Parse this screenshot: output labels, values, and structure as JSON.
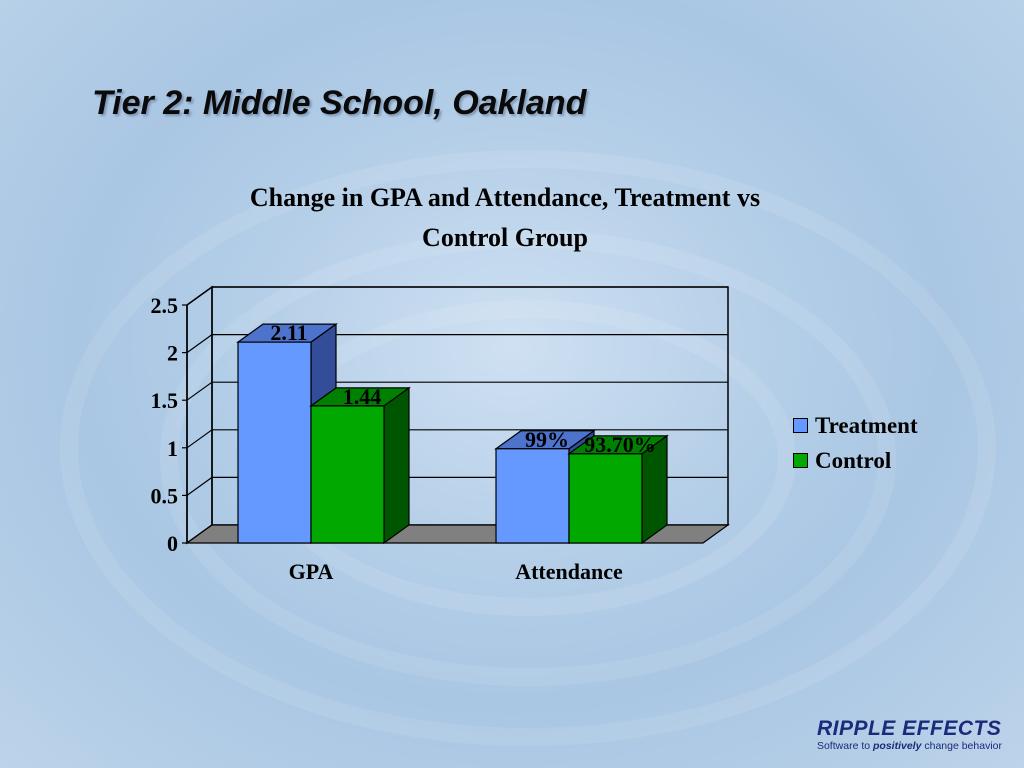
{
  "slide": {
    "title": "Tier 2: Middle School, Oakland"
  },
  "logo": {
    "name": "RIPPLE EFFECTS",
    "tagline_start": "Software to ",
    "tagline_emphasis": "positively",
    "tagline_end": " change behavior"
  },
  "chart_data": {
    "type": "bar",
    "title_line1": "Change in GPA and Attendance, Treatment vs",
    "title_line2": "Control Group",
    "categories": [
      "GPA",
      "Attendance"
    ],
    "series": [
      {
        "name": "Treatment",
        "values": [
          2.11,
          0.99
        ],
        "labels": [
          "2.11",
          "99%"
        ],
        "color": "#6699ff",
        "side_color": "#334d99",
        "top_color": "#4d73cc"
      },
      {
        "name": "Control",
        "values": [
          1.44,
          0.937
        ],
        "labels": [
          "1.44",
          "93.70%"
        ],
        "color": "#00a800",
        "side_color": "#005500",
        "top_color": "#008000"
      }
    ],
    "y_ticks": [
      "0",
      "0.5",
      "1",
      "1.5",
      "2",
      "2.5"
    ],
    "ylim": [
      0,
      2.5
    ],
    "grid": true,
    "legend_position": "right",
    "three_d": true
  }
}
